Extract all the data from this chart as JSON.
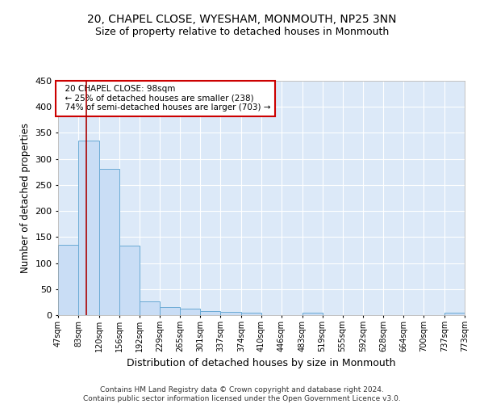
{
  "title1": "20, CHAPEL CLOSE, WYESHAM, MONMOUTH, NP25 3NN",
  "title2": "Size of property relative to detached houses in Monmouth",
  "xlabel": "Distribution of detached houses by size in Monmouth",
  "ylabel": "Number of detached properties",
  "footer1": "Contains HM Land Registry data © Crown copyright and database right 2024.",
  "footer2": "Contains public sector information licensed under the Open Government Licence v3.0.",
  "annotation_line1": "20 CHAPEL CLOSE: 98sqm",
  "annotation_line2": "← 25% of detached houses are smaller (238)",
  "annotation_line3": "74% of semi-detached houses are larger (703) →",
  "property_size": 98,
  "bin_edges": [
    47,
    83,
    120,
    156,
    192,
    229,
    265,
    301,
    337,
    374,
    410,
    446,
    483,
    519,
    555,
    592,
    628,
    664,
    700,
    737,
    773
  ],
  "bar_heights": [
    135,
    335,
    281,
    134,
    27,
    16,
    12,
    8,
    6,
    5,
    0,
    0,
    5,
    0,
    0,
    0,
    0,
    0,
    0,
    4
  ],
  "bar_color": "#c9ddf5",
  "bar_edge_color": "#6aaad4",
  "vline_color": "#aa0000",
  "background_color": "#dce9f8",
  "grid_color": "#ffffff",
  "annotation_box_edge": "#cc0000",
  "ylim": [
    0,
    450
  ],
  "yticks": [
    0,
    50,
    100,
    150,
    200,
    250,
    300,
    350,
    400,
    450
  ],
  "title1_fontsize": 10,
  "title2_fontsize": 9
}
